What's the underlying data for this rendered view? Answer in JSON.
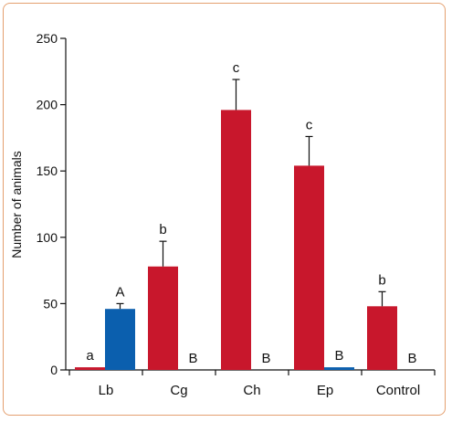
{
  "chart_data": {
    "type": "bar",
    "title": "",
    "xlabel": "",
    "ylabel": "Number of animals",
    "ylim": [
      0,
      250
    ],
    "yticks": [
      0,
      50,
      100,
      150,
      200,
      250
    ],
    "categories": [
      "Lb",
      "Cg",
      "Ch",
      "Ep",
      "Control"
    ],
    "grid": false,
    "legend": "none",
    "series": [
      {
        "color": "#c8172c",
        "values": [
          2,
          78,
          196,
          154,
          48
        ],
        "error_upper": [
          null,
          97,
          219,
          176,
          59
        ],
        "labels": [
          "a",
          "b",
          "c",
          "c",
          "b"
        ]
      },
      {
        "color": "#0b5fae",
        "values": [
          46,
          0,
          0,
          2,
          0
        ],
        "error_upper": [
          50,
          null,
          null,
          null,
          null
        ],
        "labels": [
          "A",
          "B",
          "B",
          "B",
          "B"
        ]
      }
    ]
  }
}
